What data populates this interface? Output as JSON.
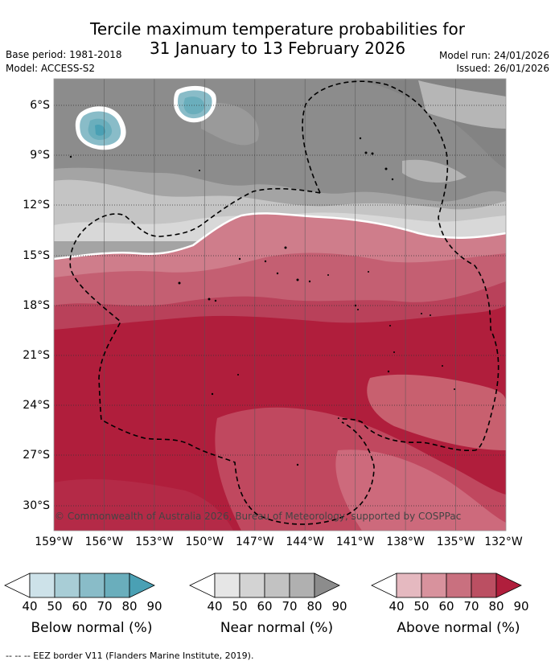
{
  "header": {
    "title_line1": "Tercile maximum temperature probabilities for",
    "title_line2": "31 January to 13 February 2026",
    "base_period": "Base period: 1981-2018",
    "model": "Model: ACCESS-S2",
    "model_run": "Model run: 24/01/2026",
    "issued": "Issued: 26/01/2026"
  },
  "map": {
    "copyright": "© Commonwealth of Australia 2026, Bureau of Meteorology, supported by COSPPac",
    "lat_labels": [
      "6°S",
      "9°S",
      "12°S",
      "15°S",
      "18°S",
      "21°S",
      "24°S",
      "27°S",
      "30°S"
    ],
    "lon_labels": [
      "159°W",
      "156°W",
      "153°W",
      "150°W",
      "147°W",
      "144°W",
      "141°W",
      "138°W",
      "135°W",
      "132°W"
    ],
    "category_colors": {
      "below_normal": "#4aa0b4",
      "near_normal": "#8a8a8a",
      "above_normal": "#b01e3c"
    }
  },
  "legend": {
    "ticks": [
      "40",
      "50",
      "60",
      "70",
      "80",
      "90"
    ],
    "below": {
      "label": "Below normal (%)",
      "colors": [
        "#ffffff",
        "#cde2e9",
        "#a8cdd6",
        "#89bcc8",
        "#6aaebc",
        "#4aa0b4"
      ]
    },
    "near": {
      "label": "Near normal (%)",
      "colors": [
        "#ffffff",
        "#e6e6e6",
        "#d3d3d3",
        "#c2c2c2",
        "#b0b0b0",
        "#8c8c8c"
      ]
    },
    "above": {
      "label": "Above normal (%)",
      "colors": [
        "#ffffff",
        "#e5b9c0",
        "#d8929d",
        "#c9707f",
        "#bb4f62",
        "#b01e3c"
      ]
    }
  },
  "footnote": "--  --  -- EEZ border V11 (Flanders Marine Institute, 2019)."
}
